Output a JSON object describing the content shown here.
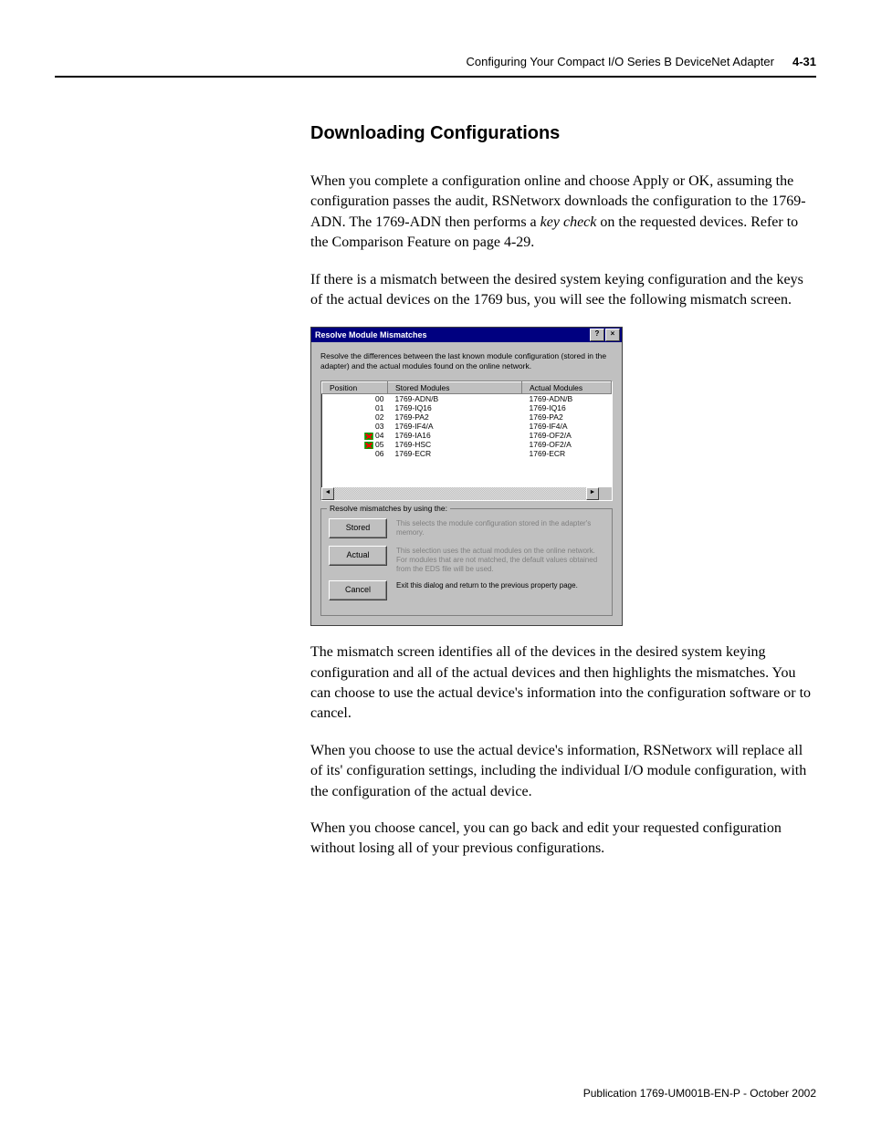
{
  "header": {
    "title": "Configuring Your Compact I/O Series B DeviceNet Adapter",
    "page": "4-31"
  },
  "section_title": "Downloading Configurations",
  "para1a": "When you complete a configuration online and choose Apply or OK, assuming the configuration passes the audit, RSNetworx downloads the configuration to the 1769-ADN. The 1769-ADN then performs a ",
  "para1b": "key check",
  "para1c": " on the requested devices. Refer to the Comparison Feature on page 4-29.",
  "para2": "If there is a mismatch between the desired system keying configuration and the keys of the actual devices on the 1769 bus, you will see the following mismatch screen.",
  "dialog": {
    "title": "Resolve Module Mismatches",
    "help_btn": "?",
    "close_btn": "×",
    "instruction": "Resolve the differences between the last known module configuration (stored in the adapter) and the actual modules found on the online network.",
    "col_position": "Position",
    "col_stored": "Stored Modules",
    "col_actual": "Actual Modules",
    "rows": [
      {
        "pos": "00",
        "stored": "1769-ADN/B",
        "actual": "1769-ADN/B",
        "mm": false
      },
      {
        "pos": "01",
        "stored": "1769-IQ16",
        "actual": "1769-IQ16",
        "mm": false
      },
      {
        "pos": "02",
        "stored": "1769-PA2",
        "actual": "1769-PA2",
        "mm": false
      },
      {
        "pos": "03",
        "stored": "1769-IF4/A",
        "actual": "1769-IF4/A",
        "mm": false
      },
      {
        "pos": "04",
        "stored": "1769-IA16",
        "actual": "1769-OF2/A",
        "mm": true
      },
      {
        "pos": "05",
        "stored": "1769-HSC",
        "actual": "1769-OF2/A",
        "mm": true
      },
      {
        "pos": "06",
        "stored": "1769-ECR",
        "actual": "1769-ECR",
        "mm": false
      }
    ],
    "resolve_legend": "Resolve mismatches by using the:",
    "stored_btn": "Stored",
    "stored_desc": "This selects the module configuration stored in the adapter's memory.",
    "actual_btn": "Actual",
    "actual_desc": "This selection uses the actual modules on the online network. For modules that are not matched, the default values obtained from the EDS file will be used.",
    "cancel_btn": "Cancel",
    "cancel_desc": "Exit this dialog and return to the previous property page."
  },
  "para3": "The mismatch screen identifies all of the devices in the desired system keying configuration and all of the actual devices and then highlights the mismatches. You can choose to use the actual device's information into the configuration software or to cancel.",
  "para4": "When you choose to use the actual device's information, RSNetworx will replace all of its' configuration settings, including the individual I/O module configuration, with the configuration of the actual device.",
  "para5": "When you choose cancel, you can go back and edit your requested configuration without losing all of your previous configurations.",
  "footer": "Publication 1769-UM001B-EN-P - October 2002"
}
